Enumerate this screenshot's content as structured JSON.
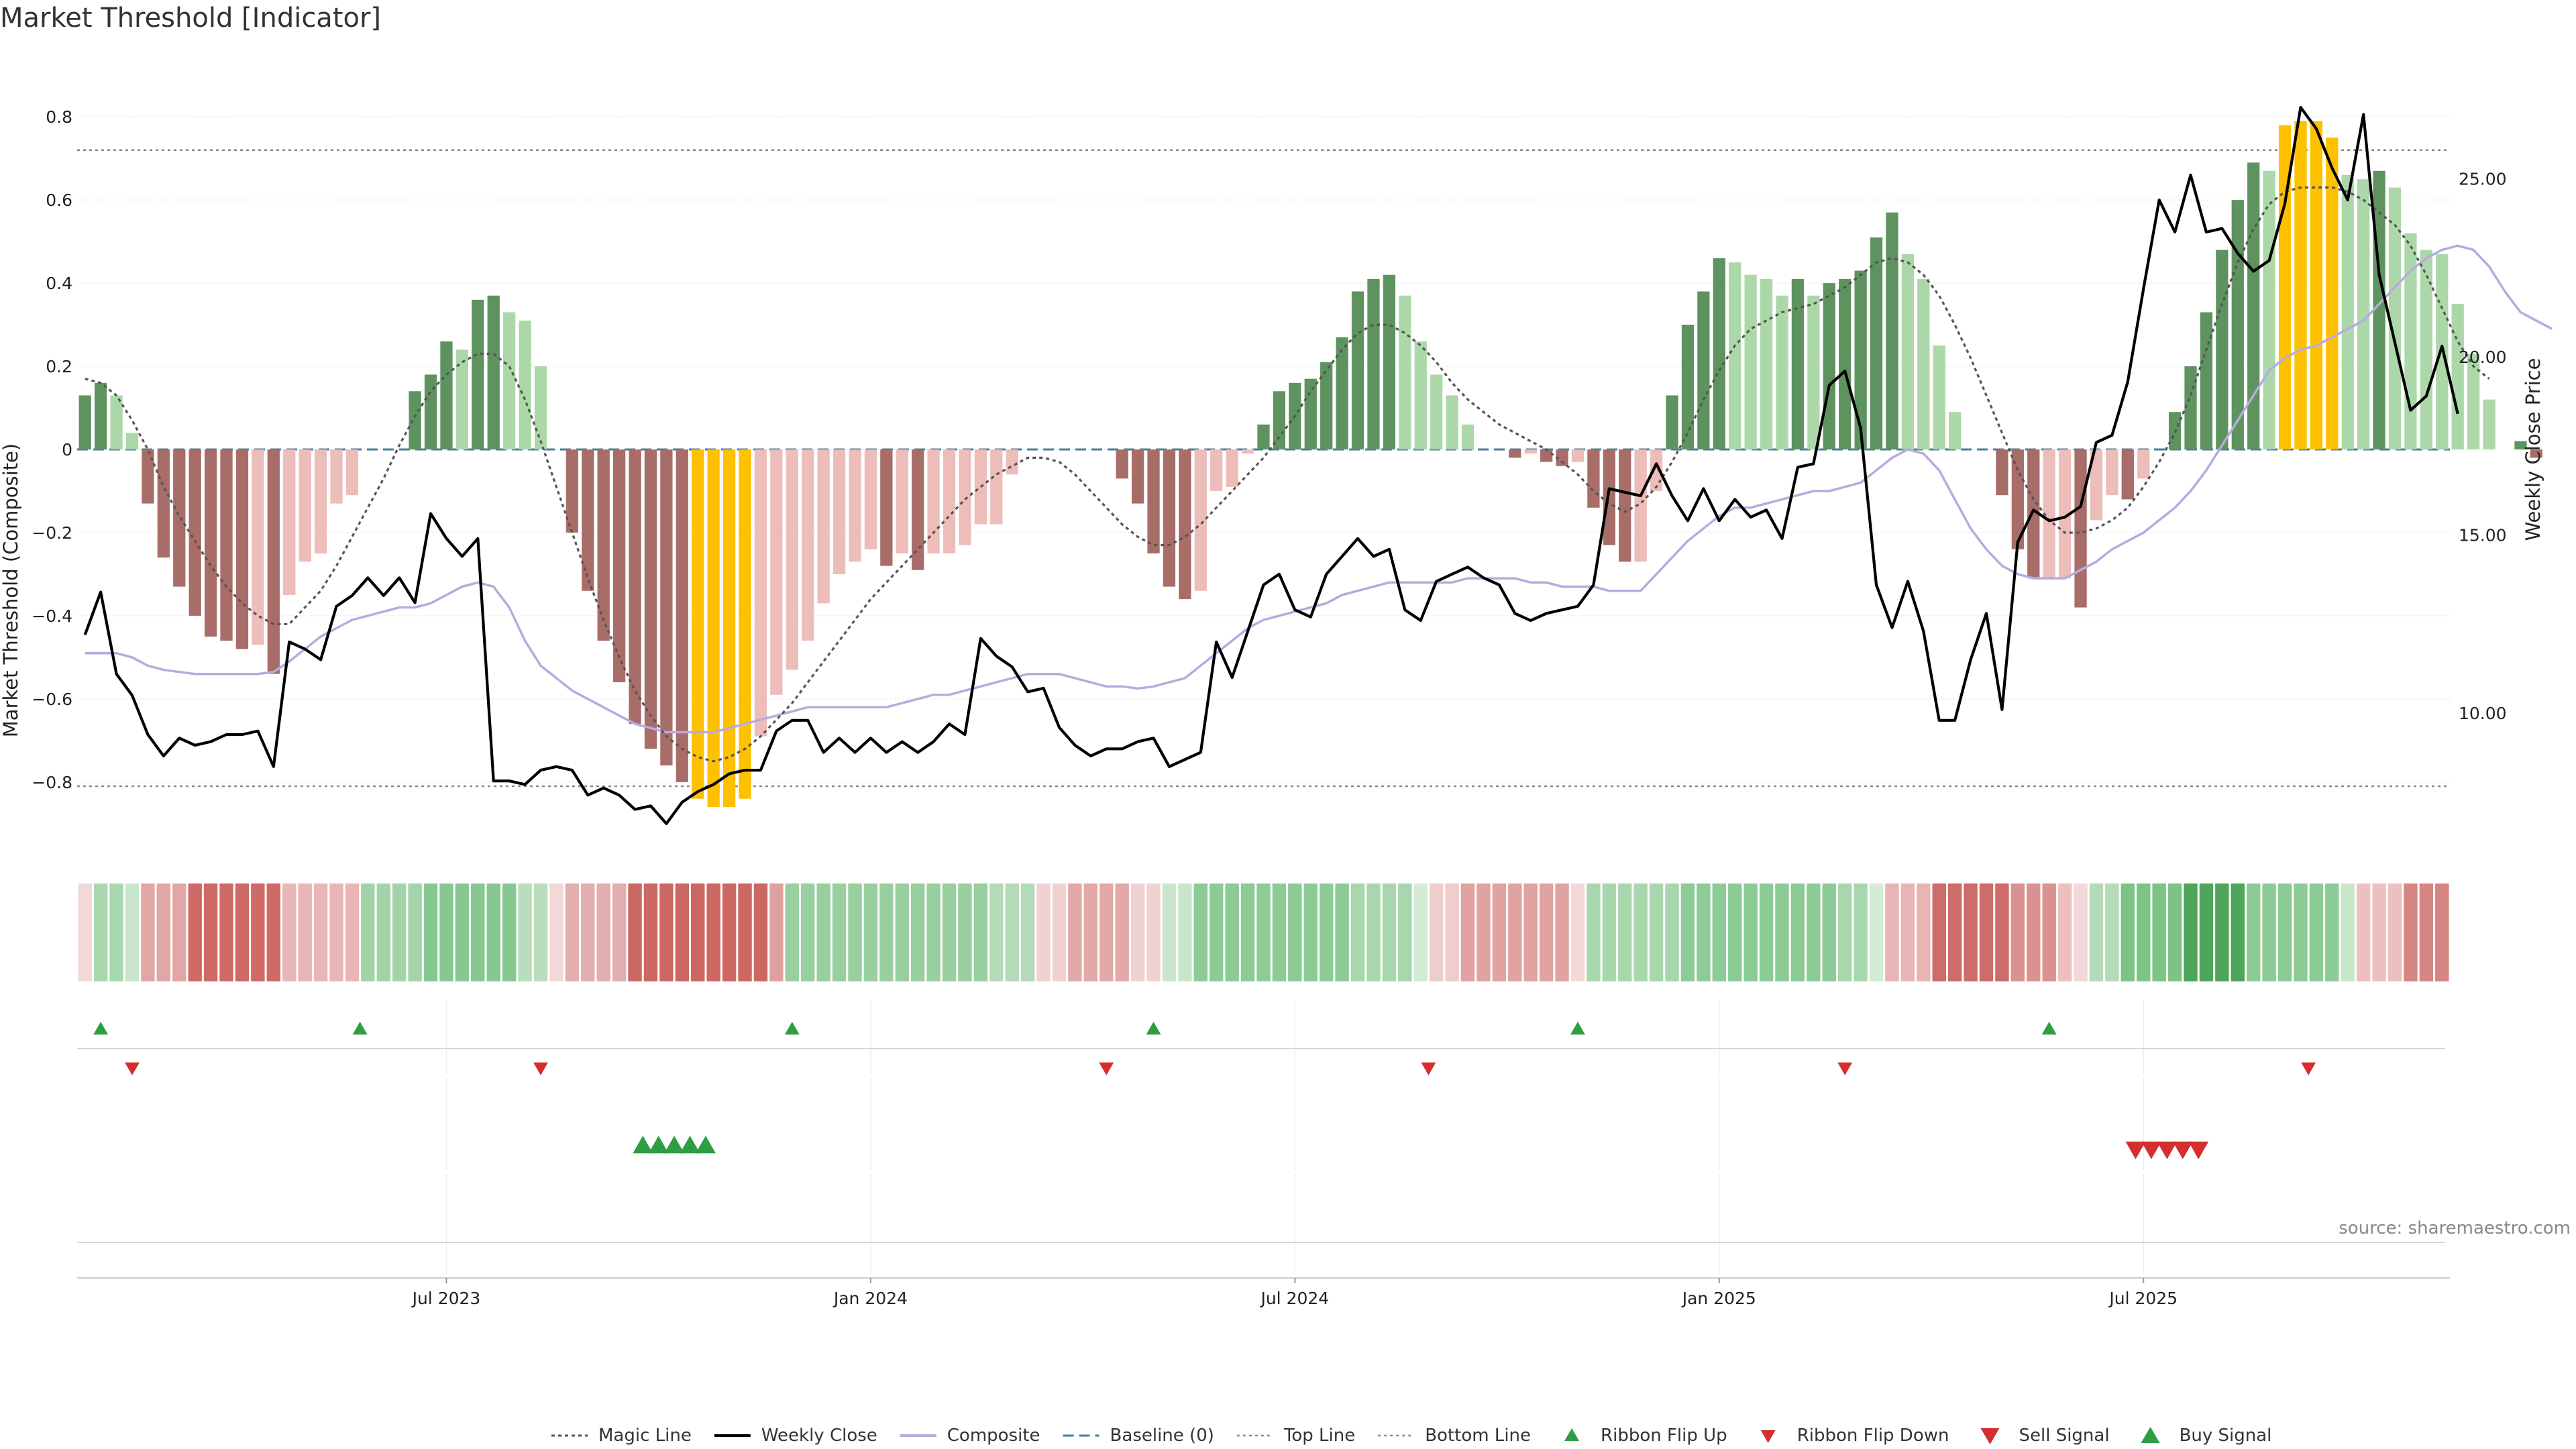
{
  "chart_data": {
    "type": "bar",
    "title": "Market Threshold [Indicator]",
    "ylabel_left": "Market Threshold (Composite)",
    "ylabel_right": "Weekly Close Price",
    "source": "source: sharemaestro.com",
    "ylim_left": [
      -0.96,
      0.96
    ],
    "ylim_right": [
      6.2,
      28.6
    ],
    "yticks_left": [
      {
        "v": 0.8,
        "label": "0.8"
      },
      {
        "v": 0.6,
        "label": "0.6"
      },
      {
        "v": 0.4,
        "label": "0.4"
      },
      {
        "v": 0.2,
        "label": "0.2"
      },
      {
        "v": 0,
        "label": "0"
      },
      {
        "v": -0.2,
        "label": "−0.2"
      },
      {
        "v": -0.4,
        "label": "−0.4"
      },
      {
        "v": -0.6,
        "label": "−0.6"
      },
      {
        "v": -0.8,
        "label": "−0.8"
      }
    ],
    "yticks_right": [
      {
        "v": 25,
        "label": "25.00"
      },
      {
        "v": 20,
        "label": "20.00"
      },
      {
        "v": 15,
        "label": "15.00"
      },
      {
        "v": 10,
        "label": "10.00"
      }
    ],
    "x_ticks": [
      {
        "week": 23.5,
        "label": "Jul 2023"
      },
      {
        "week": 50.5,
        "label": "Jan 2024"
      },
      {
        "week": 77.5,
        "label": "Jul 2024"
      },
      {
        "week": 104.5,
        "label": "Jan 2025"
      },
      {
        "week": 131.5,
        "label": "Jul 2025"
      }
    ],
    "x_range": [
      0,
      151
    ],
    "top_line": 0.72,
    "bottom_line": -0.81,
    "composite_bars": [
      0.13,
      0.16,
      0.13,
      0.04,
      -0.13,
      -0.26,
      -0.33,
      -0.4,
      -0.45,
      -0.46,
      -0.48,
      -0.47,
      -0.54,
      -0.35,
      -0.27,
      -0.25,
      -0.13,
      -0.11,
      0,
      0,
      0,
      0.14,
      0.18,
      0.26,
      0.24,
      0.36,
      0.37,
      0.33,
      0.31,
      0.2,
      0,
      -0.2,
      -0.34,
      -0.46,
      -0.56,
      -0.66,
      -0.72,
      -0.76,
      -0.8,
      -0.84,
      -0.86,
      -0.86,
      -0.84,
      -0.69,
      -0.59,
      -0.53,
      -0.46,
      -0.37,
      -0.3,
      -0.27,
      -0.24,
      -0.28,
      -0.25,
      -0.29,
      -0.25,
      -0.25,
      -0.23,
      -0.18,
      -0.18,
      -0.06,
      0,
      0,
      0,
      0,
      0,
      0,
      -0.07,
      -0.13,
      -0.25,
      -0.33,
      -0.36,
      -0.34,
      -0.1,
      -0.09,
      -0.01,
      0.06,
      0.14,
      0.16,
      0.17,
      0.21,
      0.27,
      0.38,
      0.41,
      0.42,
      0.37,
      0.26,
      0.18,
      0.13,
      0.06,
      0,
      0,
      -0.02,
      -0.01,
      -0.03,
      -0.04,
      -0.03,
      -0.14,
      -0.23,
      -0.27,
      -0.27,
      -0.1,
      0.13,
      0.3,
      0.38,
      0.46,
      0.45,
      0.42,
      0.41,
      0.37,
      0.41,
      0.37,
      0.4,
      0.41,
      0.43,
      0.51,
      0.57,
      0.47,
      0.41,
      0.25,
      0.09,
      0,
      0,
      -0.11,
      -0.24,
      -0.31,
      -0.31,
      -0.31,
      -0.38,
      -0.17,
      -0.11,
      -0.12,
      -0.07,
      0,
      0.09,
      0.2,
      0.33,
      0.48,
      0.6,
      0.69,
      0.67,
      0.78,
      0.79,
      0.79,
      0.75,
      0.66,
      0.65,
      0.67,
      0.63,
      0.52,
      0.48,
      0.47,
      0.35,
      0.23,
      0.12,
      0,
      0.02,
      -0.02
    ],
    "magic_line": [
      0.17,
      0.16,
      0.13,
      0.07,
      0,
      -0.09,
      -0.16,
      -0.22,
      -0.28,
      -0.33,
      -0.37,
      -0.4,
      -0.42,
      -0.42,
      -0.38,
      -0.34,
      -0.28,
      -0.21,
      -0.14,
      -0.07,
      0.01,
      0.08,
      0.14,
      0.18,
      0.21,
      0.23,
      0.23,
      0.2,
      0.12,
      0.02,
      -0.09,
      -0.2,
      -0.31,
      -0.41,
      -0.5,
      -0.58,
      -0.64,
      -0.69,
      -0.72,
      -0.74,
      -0.75,
      -0.74,
      -0.72,
      -0.69,
      -0.65,
      -0.61,
      -0.56,
      -0.51,
      -0.46,
      -0.41,
      -0.36,
      -0.32,
      -0.28,
      -0.24,
      -0.2,
      -0.16,
      -0.12,
      -0.09,
      -0.06,
      -0.04,
      -0.02,
      -0.02,
      -0.03,
      -0.06,
      -0.1,
      -0.14,
      -0.18,
      -0.21,
      -0.23,
      -0.23,
      -0.21,
      -0.18,
      -0.14,
      -0.1,
      -0.06,
      -0.02,
      0.03,
      0.08,
      0.14,
      0.19,
      0.24,
      0.28,
      0.3,
      0.3,
      0.28,
      0.25,
      0.21,
      0.16,
      0.12,
      0.09,
      0.06,
      0.04,
      0.02,
      0,
      -0.03,
      -0.06,
      -0.1,
      -0.13,
      -0.15,
      -0.13,
      -0.09,
      -0.03,
      0.04,
      0.12,
      0.19,
      0.25,
      0.29,
      0.31,
      0.33,
      0.34,
      0.35,
      0.37,
      0.39,
      0.42,
      0.45,
      0.46,
      0.45,
      0.42,
      0.37,
      0.3,
      0.22,
      0.13,
      0.04,
      -0.05,
      -0.12,
      -0.17,
      -0.2,
      -0.2,
      -0.19,
      -0.17,
      -0.14,
      -0.09,
      -0.03,
      0.04,
      0.13,
      0.24,
      0.35,
      0.45,
      0.53,
      0.59,
      0.62,
      0.63,
      0.63,
      0.63,
      0.62,
      0.6,
      0.57,
      0.54,
      0.49,
      0.42,
      0.34,
      0.26,
      0.2,
      0.17
    ],
    "composite_line": [
      -0.49,
      -0.49,
      -0.49,
      -0.5,
      -0.52,
      -0.53,
      -0.535,
      -0.54,
      -0.54,
      -0.54,
      -0.54,
      -0.54,
      -0.535,
      -0.51,
      -0.48,
      -0.45,
      -0.43,
      -0.41,
      -0.4,
      -0.39,
      -0.38,
      -0.38,
      -0.37,
      -0.35,
      -0.33,
      -0.32,
      -0.33,
      -0.38,
      -0.46,
      -0.52,
      -0.55,
      -0.58,
      -0.6,
      -0.62,
      -0.64,
      -0.66,
      -0.67,
      -0.68,
      -0.68,
      -0.68,
      -0.68,
      -0.67,
      -0.66,
      -0.65,
      -0.64,
      -0.63,
      -0.62,
      -0.62,
      -0.62,
      -0.62,
      -0.62,
      -0.62,
      -0.61,
      -0.6,
      -0.59,
      -0.59,
      -0.58,
      -0.57,
      -0.56,
      -0.55,
      -0.54,
      -0.54,
      -0.54,
      -0.55,
      -0.56,
      -0.57,
      -0.57,
      -0.575,
      -0.57,
      -0.56,
      -0.55,
      -0.52,
      -0.49,
      -0.46,
      -0.43,
      -0.41,
      -0.4,
      -0.39,
      -0.38,
      -0.37,
      -0.35,
      -0.34,
      -0.33,
      -0.32,
      -0.32,
      -0.32,
      -0.32,
      -0.32,
      -0.31,
      -0.31,
      -0.31,
      -0.31,
      -0.32,
      -0.32,
      -0.33,
      -0.33,
      -0.33,
      -0.34,
      -0.34,
      -0.34,
      -0.3,
      -0.26,
      -0.22,
      -0.19,
      -0.16,
      -0.14,
      -0.14,
      -0.13,
      -0.12,
      -0.11,
      -0.1,
      -0.1,
      -0.09,
      -0.08,
      -0.05,
      -0.02,
      0,
      -0.01,
      -0.05,
      -0.12,
      -0.19,
      -0.24,
      -0.28,
      -0.3,
      -0.31,
      -0.31,
      -0.31,
      -0.29,
      -0.27,
      -0.24,
      -0.22,
      -0.2,
      -0.17,
      -0.14,
      -0.1,
      -0.05,
      0.01,
      0.07,
      0.13,
      0.19,
      0.22,
      0.24,
      0.25,
      0.27,
      0.29,
      0.31,
      0.35,
      0.39,
      0.43,
      0.46,
      0.48,
      0.49,
      0.48,
      0.44,
      0.38,
      0.33,
      0.31,
      0.29
    ],
    "weekly_close": [
      12.2,
      13.4,
      11.1,
      10.5,
      9.4,
      8.8,
      9.3,
      9.1,
      9.2,
      9.4,
      9.4,
      9.5,
      8.5,
      12.0,
      11.8,
      11.5,
      13.0,
      13.3,
      13.8,
      13.3,
      13.8,
      13.1,
      15.6,
      14.9,
      14.4,
      14.9,
      8.1,
      8.1,
      8.0,
      8.4,
      8.5,
      8.4,
      7.7,
      7.9,
      7.7,
      7.3,
      7.4,
      6.9,
      7.5,
      7.8,
      8.0,
      8.3,
      8.4,
      8.4,
      9.5,
      9.8,
      9.8,
      8.9,
      9.3,
      8.9,
      9.3,
      8.9,
      9.2,
      8.9,
      9.2,
      9.7,
      9.4,
      12.1,
      11.6,
      11.3,
      10.6,
      10.7,
      9.6,
      9.1,
      8.8,
      9.0,
      9.0,
      9.2,
      9.3,
      8.5,
      8.7,
      8.9,
      12.0,
      11.0,
      12.3,
      13.6,
      13.9,
      12.9,
      12.7,
      13.9,
      14.4,
      14.9,
      14.4,
      14.6,
      12.9,
      12.6,
      13.7,
      13.9,
      14.1,
      13.8,
      13.6,
      12.8,
      12.6,
      12.8,
      12.9,
      13.0,
      13.6,
      16.3,
      16.2,
      16.1,
      17.0,
      16.1,
      15.4,
      16.3,
      15.4,
      16.0,
      15.5,
      15.7,
      14.9,
      16.9,
      17.0,
      19.2,
      19.6,
      18.0,
      13.6,
      12.4,
      13.7,
      12.3,
      9.8,
      9.8,
      11.5,
      12.8,
      10.1,
      14.8,
      15.7,
      15.4,
      15.5,
      15.8,
      17.6,
      17.8,
      19.3,
      21.9,
      24.4,
      23.5,
      25.1,
      23.5,
      23.6,
      22.9,
      22.4,
      22.7,
      24.3,
      27.0,
      26.4,
      25.3,
      24.4,
      26.8,
      22.3,
      20.4,
      18.5,
      18.9,
      20.3,
      18.4
    ],
    "ribbon": [
      {
        "from": 0,
        "to": 1,
        "color": "#f2d8d8"
      },
      {
        "from": 1,
        "to": 3,
        "color": "#a9d8ae"
      },
      {
        "from": 3,
        "to": 4,
        "color": "#c9e6cb"
      },
      {
        "from": 4,
        "to": 7,
        "color": "#e3a6a6"
      },
      {
        "from": 7,
        "to": 13,
        "color": "#cf6a67"
      },
      {
        "from": 13,
        "to": 18,
        "color": "#e9b5b5"
      },
      {
        "from": 18,
        "to": 22,
        "color": "#a3d4a9"
      },
      {
        "from": 22,
        "to": 28,
        "color": "#87c891"
      },
      {
        "from": 28,
        "to": 30,
        "color": "#b9ddbd"
      },
      {
        "from": 30,
        "to": 31,
        "color": "#f2d8d8"
      },
      {
        "from": 31,
        "to": 35,
        "color": "#e3aeae"
      },
      {
        "from": 35,
        "to": 44,
        "color": "#cc6864"
      },
      {
        "from": 44,
        "to": 45,
        "color": "#e1a0a0"
      },
      {
        "from": 45,
        "to": 58,
        "color": "#98cfa0"
      },
      {
        "from": 58,
        "to": 61,
        "color": "#b5dab9"
      },
      {
        "from": 61,
        "to": 63,
        "color": "#f0d2d2"
      },
      {
        "from": 63,
        "to": 67,
        "color": "#e3a9a8"
      },
      {
        "from": 67,
        "to": 69,
        "color": "#f0d2d2"
      },
      {
        "from": 69,
        "to": 71,
        "color": "#c9e6cb"
      },
      {
        "from": 71,
        "to": 81,
        "color": "#8ccb95"
      },
      {
        "from": 81,
        "to": 85,
        "color": "#a8d7ae"
      },
      {
        "from": 85,
        "to": 86,
        "color": "#d4ecd6"
      },
      {
        "from": 86,
        "to": 88,
        "color": "#f0cdcd"
      },
      {
        "from": 88,
        "to": 95,
        "color": "#e0a3a2"
      },
      {
        "from": 95,
        "to": 96,
        "color": "#f2d8d8"
      },
      {
        "from": 96,
        "to": 102,
        "color": "#a8d7ae"
      },
      {
        "from": 102,
        "to": 112,
        "color": "#8ccb95"
      },
      {
        "from": 112,
        "to": 114,
        "color": "#a8d7ae"
      },
      {
        "from": 114,
        "to": 115,
        "color": "#d4ecd6"
      },
      {
        "from": 115,
        "to": 118,
        "color": "#e8b4b4"
      },
      {
        "from": 118,
        "to": 123,
        "color": "#cd6c68"
      },
      {
        "from": 123,
        "to": 126,
        "color": "#da9290"
      },
      {
        "from": 126,
        "to": 127,
        "color": "#eebfbf"
      },
      {
        "from": 127,
        "to": 128,
        "color": "#f2d8d8"
      },
      {
        "from": 128,
        "to": 130,
        "color": "#b5dab9"
      },
      {
        "from": 130,
        "to": 134,
        "color": "#7cc486"
      },
      {
        "from": 134,
        "to": 138,
        "color": "#4ea65b"
      },
      {
        "from": 138,
        "to": 144,
        "color": "#8ccb95"
      },
      {
        "from": 144,
        "to": 145,
        "color": "#c9e6cb"
      },
      {
        "from": 145,
        "to": 148,
        "color": "#edc0c0"
      },
      {
        "from": 148,
        "to": 151,
        "color": "#d58582"
      }
    ],
    "ribbon_flip_up": [
      1,
      17.5,
      45,
      68,
      95,
      125
    ],
    "ribbon_flip_down": [
      3,
      29,
      65,
      85.5,
      112,
      141.5
    ],
    "buy_signal": [
      35.5,
      36.5,
      37.5,
      38.5,
      39.5
    ],
    "sell_signal": [
      130.5,
      131.5,
      132.5,
      133.5,
      134.5
    ],
    "legend": [
      {
        "key": "magic",
        "label": "Magic Line"
      },
      {
        "key": "close",
        "label": "Weekly Close"
      },
      {
        "key": "composite",
        "label": "Composite"
      },
      {
        "key": "baseline",
        "label": "Baseline (0)"
      },
      {
        "key": "top",
        "label": "Top Line"
      },
      {
        "key": "bottom",
        "label": "Bottom Line"
      },
      {
        "key": "flipup",
        "label": "Ribbon Flip Up"
      },
      {
        "key": "flipdown",
        "label": "Ribbon Flip Down"
      },
      {
        "key": "sell",
        "label": "Sell Signal"
      },
      {
        "key": "buy",
        "label": "Buy Signal"
      }
    ],
    "colors": {
      "pos_dark": "#5e9360",
      "pos_light": "#acd8a9",
      "neg_dark": "#a86d69",
      "neg_light": "#edbdb9",
      "extreme": "#ffc000",
      "magic": "#555555",
      "close": "#000000",
      "composite": "#b6abdf",
      "baseline": "#4a7c9b",
      "guide": "#888888",
      "up": "#2e9e44",
      "down": "#d32f2f"
    }
  }
}
